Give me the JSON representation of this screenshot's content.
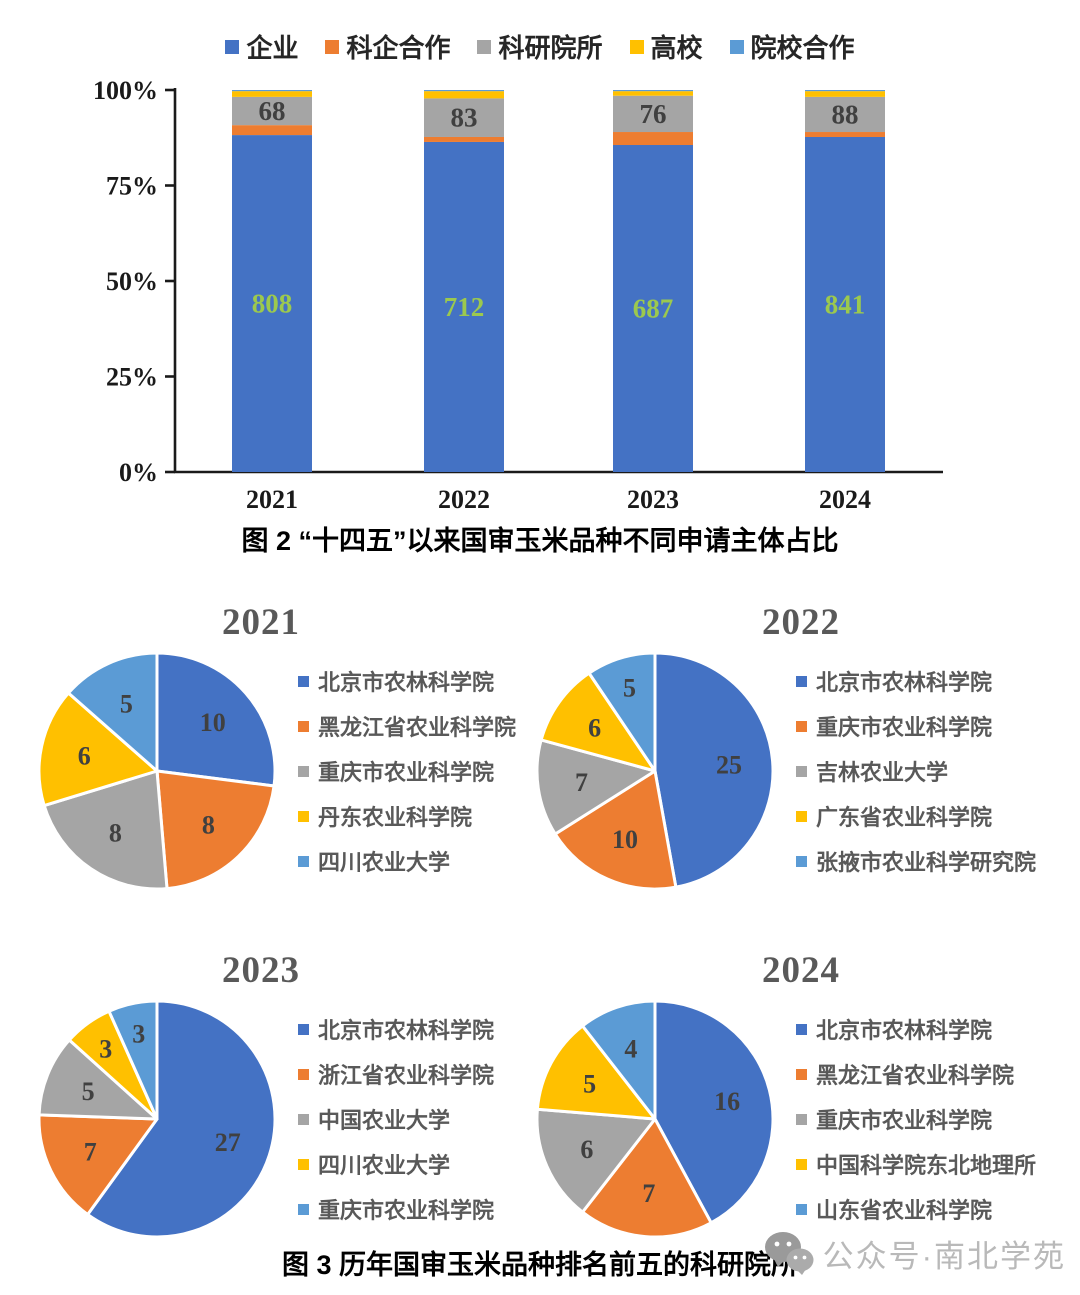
{
  "chart_data": [
    {
      "id": "fig2-stacked-bar",
      "type": "bar",
      "subtype": "stacked-100-percent",
      "title": "图 2 “十四五”以来国审玉米品种不同申请主体占比",
      "categories": [
        "2021",
        "2022",
        "2023",
        "2024"
      ],
      "series": [
        {
          "name": "企业",
          "color": "#4472C4",
          "counts": [
            808,
            712,
            687,
            841
          ],
          "pct": [
            88.2,
            86.4,
            85.6,
            87.7
          ],
          "show_labels": true,
          "label_color": "#9CC94E"
        },
        {
          "name": "科企合作",
          "color": "#ED7D31",
          "pct": [
            2.6,
            1.3,
            3.4,
            1.3
          ],
          "show_labels": false
        },
        {
          "name": "科研院所",
          "color": "#A5A5A5",
          "counts": [
            68,
            83,
            76,
            88
          ],
          "pct": [
            7.4,
            10.1,
            9.5,
            9.2
          ],
          "show_labels": true,
          "label_color": "#404040"
        },
        {
          "name": "高校",
          "color": "#FFC000",
          "pct": [
            1.5,
            1.9,
            1.2,
            1.5
          ],
          "show_labels": false
        },
        {
          "name": "院校合作",
          "color": "#5B9BD5",
          "pct": [
            0.3,
            0.3,
            0.3,
            0.3
          ],
          "show_labels": false
        }
      ],
      "y_ticks": [
        "100%",
        "75%",
        "50%",
        "25%",
        "0%"
      ],
      "ylim": [
        0,
        100
      ],
      "grid": false,
      "legend_position": "top"
    },
    {
      "id": "pie-2021",
      "type": "pie",
      "title": "2021",
      "values": [
        10,
        8,
        8,
        6,
        5
      ],
      "labels": [
        "北京市农林科学院",
        "黑龙江省农业科学院",
        "重庆市农业科学院",
        "丹东农业科学院",
        "四川农业大学"
      ],
      "colors": [
        "#4472C4",
        "#ED7D31",
        "#A5A5A5",
        "#FFC000",
        "#5B9BD5"
      ],
      "legend_position": "right"
    },
    {
      "id": "pie-2022",
      "type": "pie",
      "title": "2022",
      "values": [
        25,
        10,
        7,
        6,
        5
      ],
      "labels": [
        "北京市农林科学院",
        "重庆市农业科学院",
        "吉林农业大学",
        "广东省农业科学院",
        "张掖市农业科学研究院"
      ],
      "colors": [
        "#4472C4",
        "#ED7D31",
        "#A5A5A5",
        "#FFC000",
        "#5B9BD5"
      ],
      "legend_position": "right"
    },
    {
      "id": "pie-2023",
      "type": "pie",
      "title": "2023",
      "values": [
        27,
        7,
        5,
        3,
        3
      ],
      "labels": [
        "北京市农林科学院",
        "浙江省农业科学院",
        "中国农业大学",
        "四川农业大学",
        "重庆市农业科学院"
      ],
      "colors": [
        "#4472C4",
        "#ED7D31",
        "#A5A5A5",
        "#FFC000",
        "#5B9BD5"
      ],
      "legend_position": "right"
    },
    {
      "id": "pie-2024",
      "type": "pie",
      "title": "2024",
      "values": [
        16,
        7,
        6,
        5,
        4
      ],
      "labels": [
        "北京市农林科学院",
        "黑龙江省农业科学院",
        "重庆市农业科学院",
        "中国科学院东北地理所",
        "山东省农业科学院"
      ],
      "colors": [
        "#4472C4",
        "#ED7D31",
        "#A5A5A5",
        "#FFC000",
        "#5B9BD5"
      ],
      "legend_position": "right"
    }
  ],
  "figure3_caption": "图 3 历年国审玉米品种排名前五的科研院所",
  "watermark": {
    "icon": "wechat-icon",
    "text": "公众号·南北学苑",
    "color": "#b9b9b9"
  }
}
